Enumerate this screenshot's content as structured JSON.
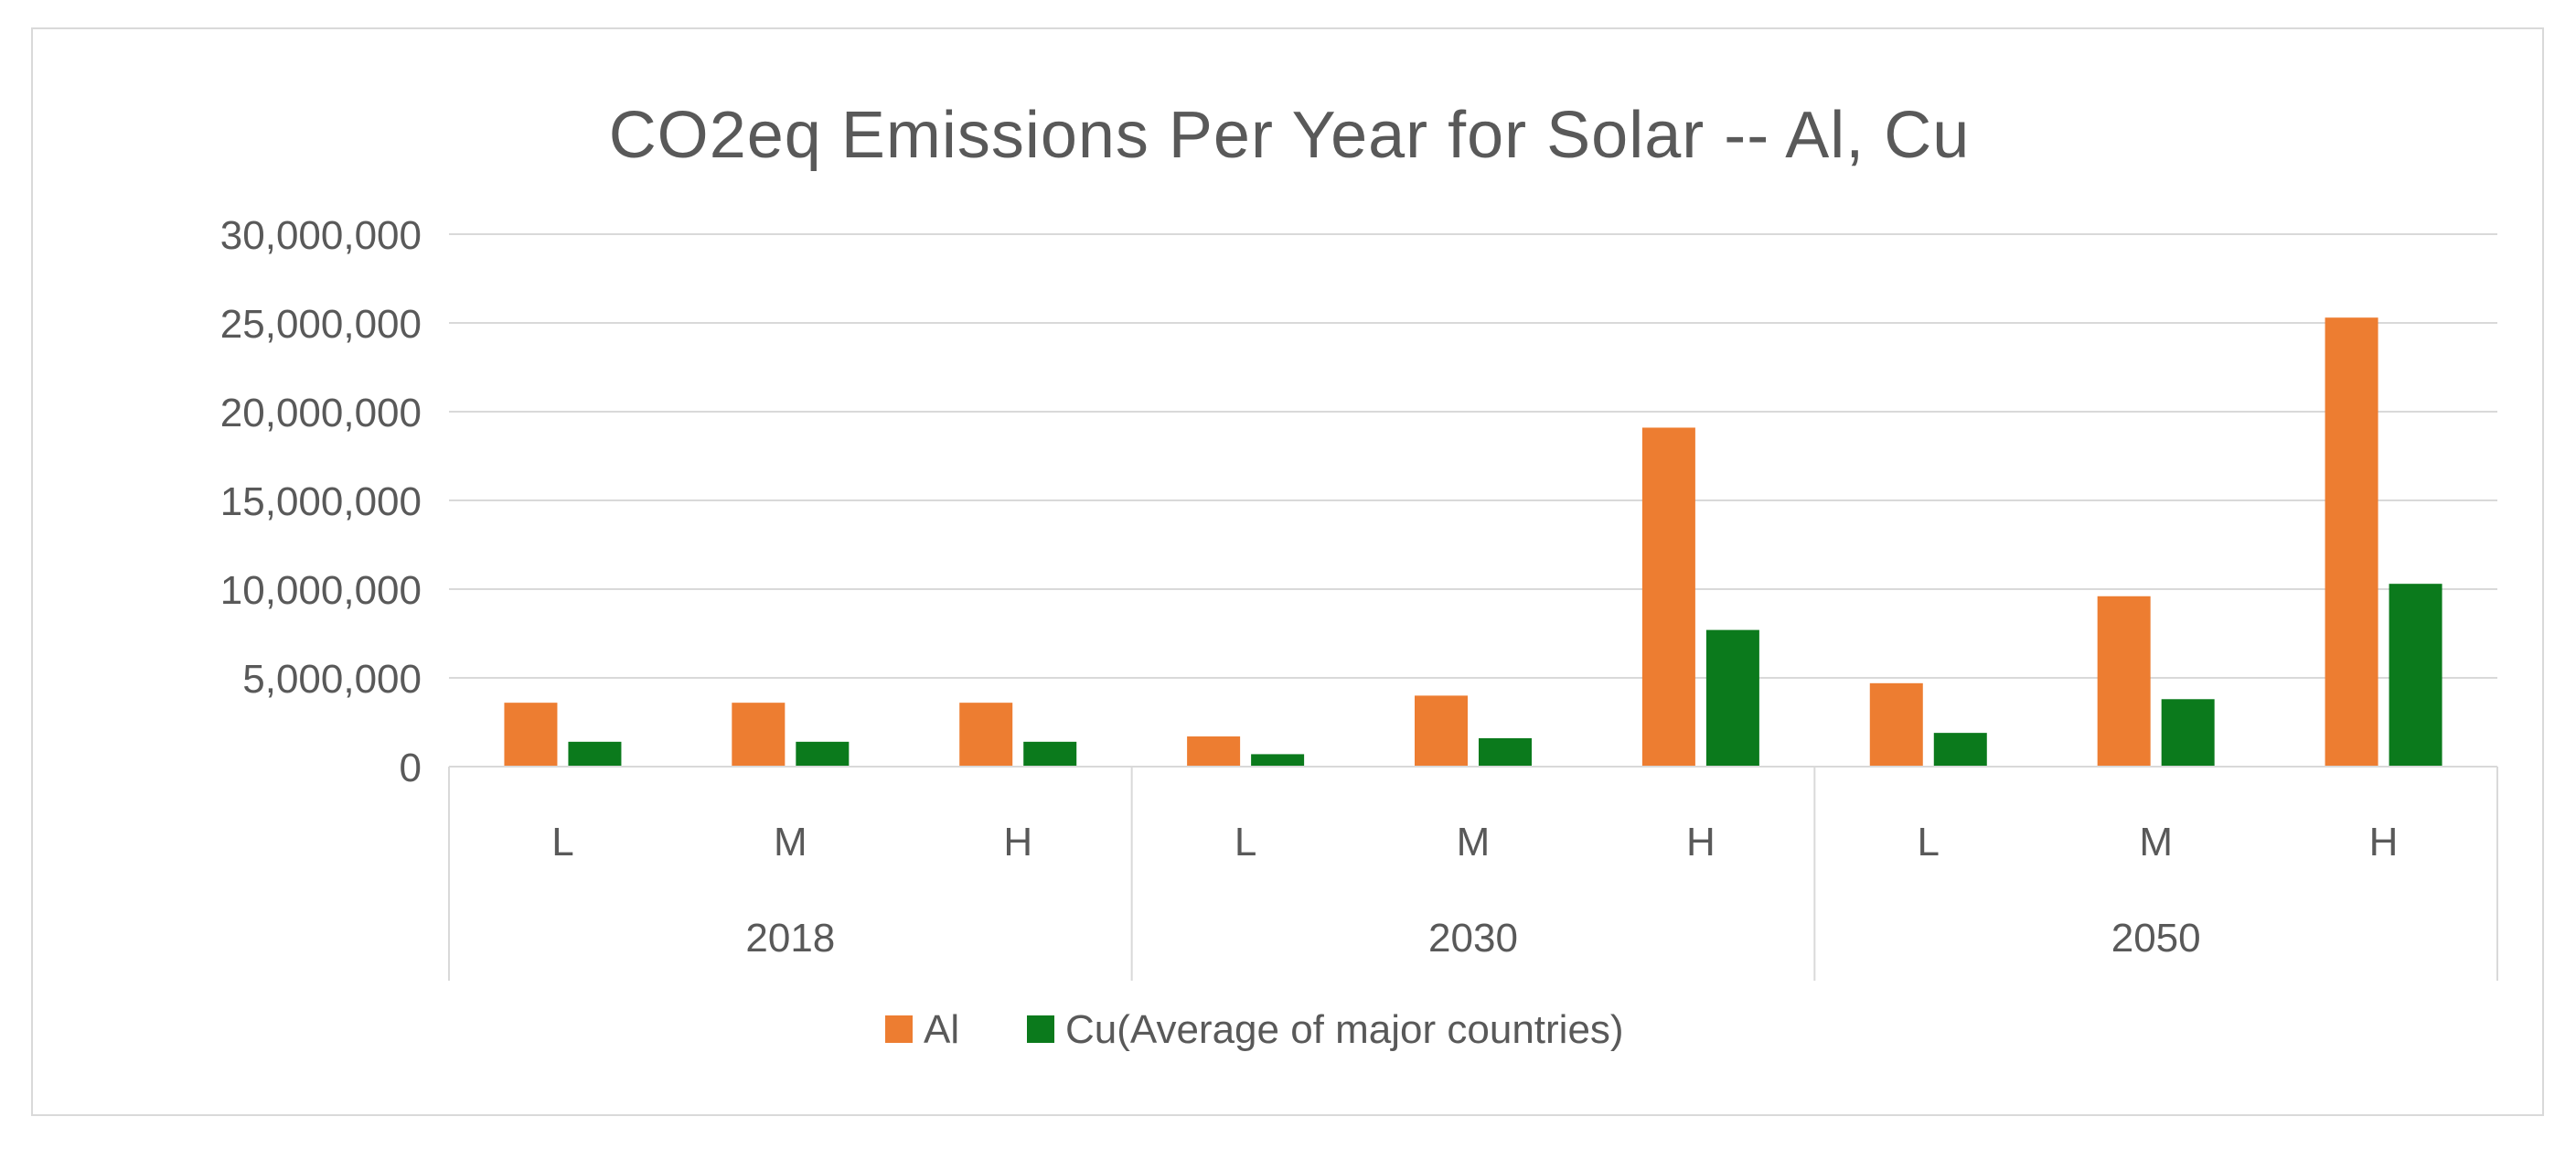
{
  "chart_data": {
    "type": "bar",
    "title": "CO2eq Emissions Per Year for Solar -- Al, Cu",
    "xlabel": "",
    "ylabel": "",
    "ylim": [
      0,
      30000000
    ],
    "yticks": [
      "0",
      "5,000,000",
      "10,000,000",
      "15,000,000",
      "20,000,000",
      "25,000,000",
      "30,000,000"
    ],
    "ytick_values": [
      0,
      5000000,
      10000000,
      15000000,
      20000000,
      25000000,
      30000000
    ],
    "groups": [
      {
        "label": "2018",
        "categories": [
          "L",
          "M",
          "H"
        ]
      },
      {
        "label": "2030",
        "categories": [
          "L",
          "M",
          "H"
        ]
      },
      {
        "label": "2050",
        "categories": [
          "L",
          "M",
          "H"
        ]
      }
    ],
    "categories": [
      "L",
      "M",
      "H",
      "L",
      "M",
      "H",
      "L",
      "M",
      "H"
    ],
    "series": [
      {
        "name": "Al",
        "color": "#ed7d31",
        "values": [
          3600000,
          3600000,
          3600000,
          1700000,
          4000000,
          19100000,
          4700000,
          9600000,
          25300000
        ]
      },
      {
        "name": "Cu(Average of major countries)",
        "color": "#0b7a1c",
        "values": [
          1400000,
          1400000,
          1400000,
          700000,
          1600000,
          7700000,
          1900000,
          3800000,
          10300000
        ]
      }
    ],
    "grid": true,
    "legend": "bottom"
  },
  "colors": {
    "gridline": "#d9d9d9",
    "axis_text": "#595959",
    "frame_border": "#d9d9d9"
  }
}
